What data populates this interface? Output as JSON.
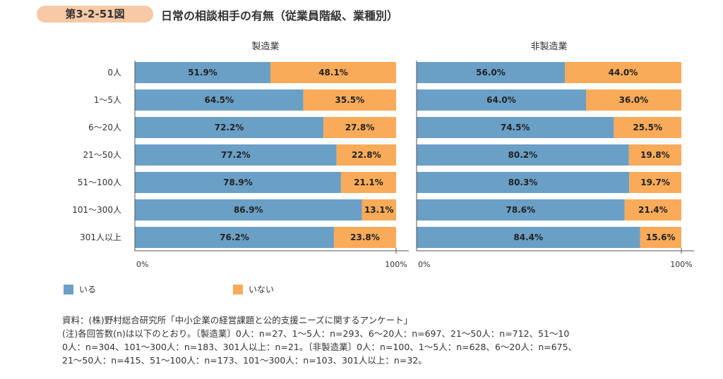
{
  "header": {
    "figure_number": "第3-2-51図",
    "title": "日常の相談相手の有無（従業員階級、業種別）"
  },
  "colors": {
    "yes": "#6a9fc6",
    "no": "#f9ab5a"
  },
  "chart_data": [
    {
      "type": "bar",
      "orientation": "horizontal",
      "stacked": true,
      "title": "製造業",
      "categories": [
        "0人",
        "1～5人",
        "6～20人",
        "21～50人",
        "51～100人",
        "101～300人",
        "301人以上"
      ],
      "series": [
        {
          "name": "いる",
          "values": [
            51.9,
            64.5,
            72.2,
            77.2,
            78.9,
            86.9,
            76.2
          ]
        },
        {
          "name": "いない",
          "values": [
            48.1,
            35.5,
            27.8,
            22.8,
            21.1,
            13.1,
            23.8
          ]
        }
      ],
      "xlim": [
        0,
        100
      ],
      "xticks": [
        "0%",
        "100%"
      ]
    },
    {
      "type": "bar",
      "orientation": "horizontal",
      "stacked": true,
      "title": "非製造業",
      "categories": [
        "0人",
        "1～5人",
        "6～20人",
        "21～50人",
        "51～100人",
        "101～300人",
        "301人以上"
      ],
      "series": [
        {
          "name": "いる",
          "values": [
            56.0,
            64.0,
            74.5,
            80.2,
            80.3,
            78.6,
            84.4
          ]
        },
        {
          "name": "いない",
          "values": [
            44.0,
            36.0,
            25.5,
            19.8,
            19.7,
            21.4,
            15.6
          ]
        }
      ],
      "xlim": [
        0,
        100
      ],
      "xticks": [
        "0%",
        "100%"
      ]
    }
  ],
  "legend": {
    "placement": "bottom-left",
    "items": [
      "いる",
      "いない"
    ]
  },
  "notes": [
    "資料：(株)野村総合研究所「中小企業の経営課題と公的支援ニーズに関するアンケート」",
    "(注)各回答数(n)は以下のとおり。〔製造業〕0人：n=27、1～5人：n=293、6～20人：n=697、21～50人：n=712、51～10",
    "0人：n=304、101～300人：n=183、301人以上：n=21。〔非製造業〕0人：n=100、1～5人：n=628、6～20人：n=675、",
    "21～50人：n=415、51～100人：n=173、101～300人：n=103、301人以上：n=32。"
  ]
}
